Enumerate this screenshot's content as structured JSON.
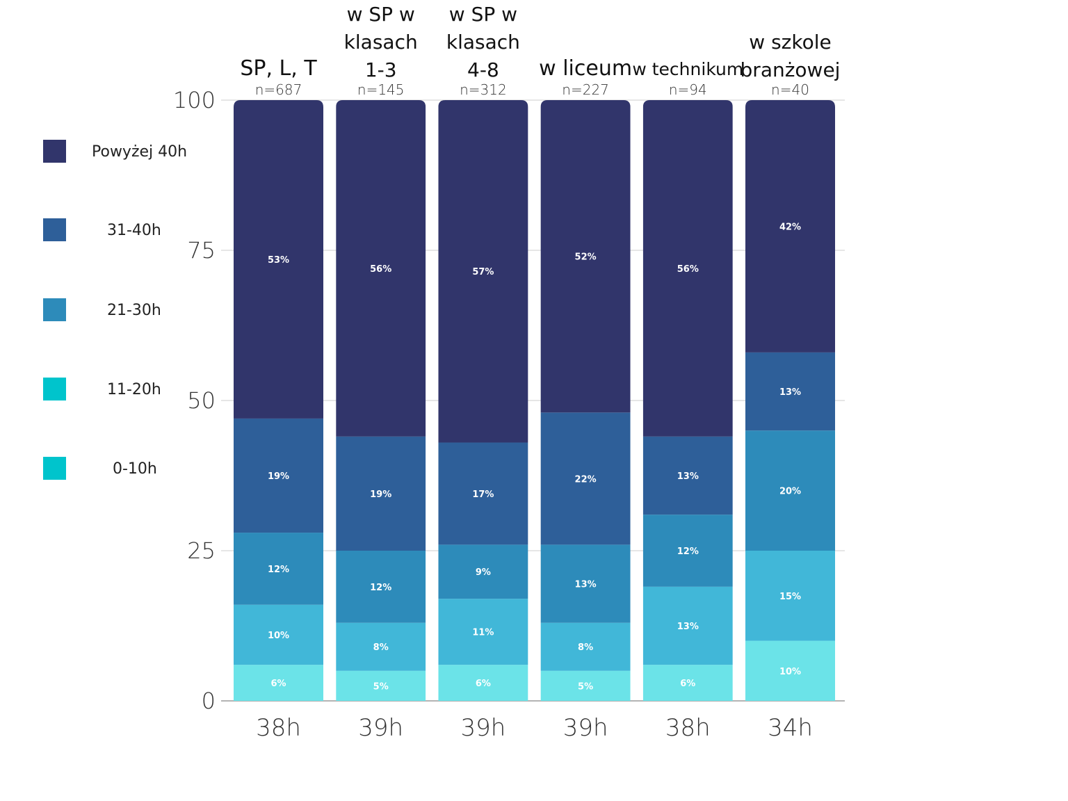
{
  "chart_data": {
    "type": "bar",
    "stacked": true,
    "categories": [
      "SP, L, T",
      "w SP w klasach 1-3",
      "w SP w klasach 4-8",
      "w liceum",
      "w technikum",
      "w szkole branżowej"
    ],
    "category_lines": [
      [
        "SP, L, T"
      ],
      [
        "w SP w",
        "klasach",
        "1-3"
      ],
      [
        "w SP w",
        "klasach",
        "4-8"
      ],
      [
        "w liceum"
      ],
      [
        "w technikum"
      ],
      [
        "w szkole",
        "branżowej"
      ]
    ],
    "sample_sizes": [
      "n=687",
      "n=145",
      "n=312",
      "n=227",
      "n=94",
      "n=40"
    ],
    "bottom_labels": [
      "38h",
      "39h",
      "39h",
      "39h",
      "38h",
      "34h"
    ],
    "series": [
      {
        "name": "0-10h",
        "color": "#6be3e8",
        "values": [
          6,
          5,
          6,
          5,
          6,
          10
        ]
      },
      {
        "name": "11-20h",
        "color": "#41b7d8",
        "values": [
          10,
          8,
          11,
          8,
          13,
          15
        ]
      },
      {
        "name": "21-30h",
        "color": "#2d8bba",
        "values": [
          12,
          12,
          9,
          13,
          12,
          20
        ]
      },
      {
        "name": "31-40h",
        "color": "#2e5f99",
        "values": [
          19,
          19,
          17,
          22,
          13,
          13
        ]
      },
      {
        "name": "Powyżej 40h",
        "color": "#31356b",
        "values": [
          53,
          56,
          57,
          52,
          56,
          42
        ]
      }
    ],
    "legend": [
      {
        "label": "Powyżej 40h",
        "color": "#31356b"
      },
      {
        "label": "31-40h",
        "color": "#2e5f99"
      },
      {
        "label": "21-30h",
        "color": "#2d8bba"
      },
      {
        "label": "11-20h",
        "color": "#00c4cc"
      },
      {
        "label": "0-10h",
        "color": "#00c4cc"
      }
    ],
    "yticks": [
      0,
      25,
      50,
      75,
      100
    ],
    "ylim": [
      0,
      100
    ],
    "grid": true,
    "legend_position": "left"
  }
}
